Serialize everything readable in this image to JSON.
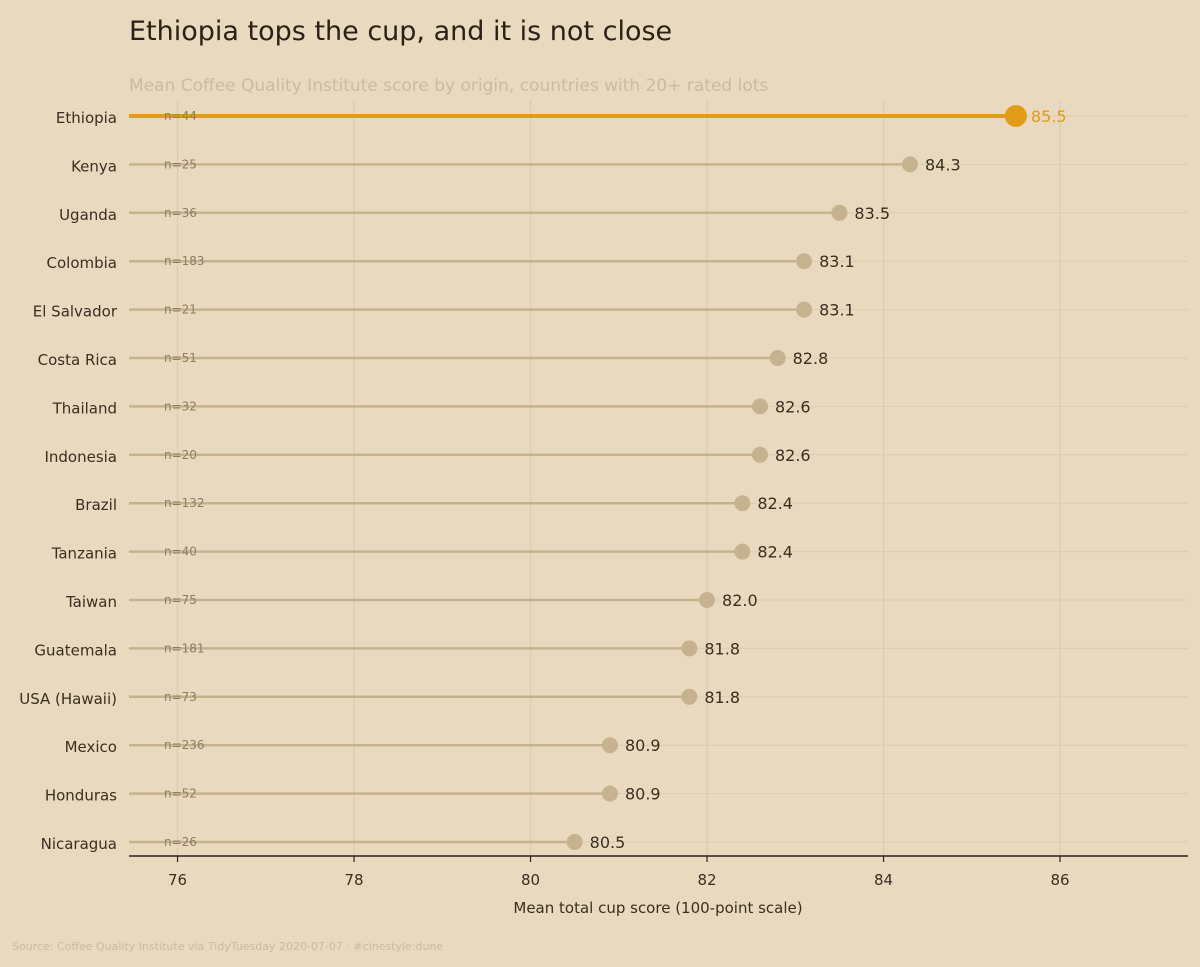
{
  "chart_data": {
    "type": "lollipop",
    "title": "Ethiopia tops the cup, and it is not close",
    "subtitle": "Mean Coffee Quality Institute score by origin, countries with 20+ rated lots",
    "xlabel": "Mean total cup score (100-point scale)",
    "xlim": [
      75.45,
      87.45
    ],
    "xticks": [
      76,
      78,
      80,
      82,
      84,
      86
    ],
    "grid": "vertical and horizontal",
    "highlight": "Ethiopia",
    "categories": [
      "Ethiopia",
      "Kenya",
      "Uganda",
      "Colombia",
      "El Salvador",
      "Costa Rica",
      "Thailand",
      "Indonesia",
      "Brazil",
      "Tanzania",
      "Taiwan",
      "Guatemala",
      "USA (Hawaii)",
      "Mexico",
      "Honduras",
      "Nicaragua"
    ],
    "values": [
      85.5,
      84.3,
      83.5,
      83.1,
      83.1,
      82.8,
      82.6,
      82.6,
      82.4,
      82.4,
      82.0,
      81.8,
      81.8,
      80.9,
      80.9,
      80.5
    ],
    "value_labels": [
      "85.5",
      "84.3",
      "83.5",
      "83.1",
      "83.1",
      "82.8",
      "82.6",
      "82.6",
      "82.4",
      "82.4",
      "82.0",
      "81.8",
      "81.8",
      "80.9",
      "80.9",
      "80.5"
    ],
    "n_labels": [
      "n=44",
      "n=25",
      "n=36",
      "n=183",
      "n=21",
      "n=51",
      "n=32",
      "n=20",
      "n=132",
      "n=40",
      "n=75",
      "n=181",
      "n=73",
      "n=236",
      "n=52",
      "n=26"
    ],
    "source": "Source: Coffee Quality Institute via TidyTuesday 2020-07-07 · #cinestyle:dune"
  },
  "colors": {
    "background": "#e9d9bf",
    "highlight": "#e39c17",
    "muted": "#c7b290",
    "grid": "#dccbad",
    "axis": "#2b2116"
  }
}
